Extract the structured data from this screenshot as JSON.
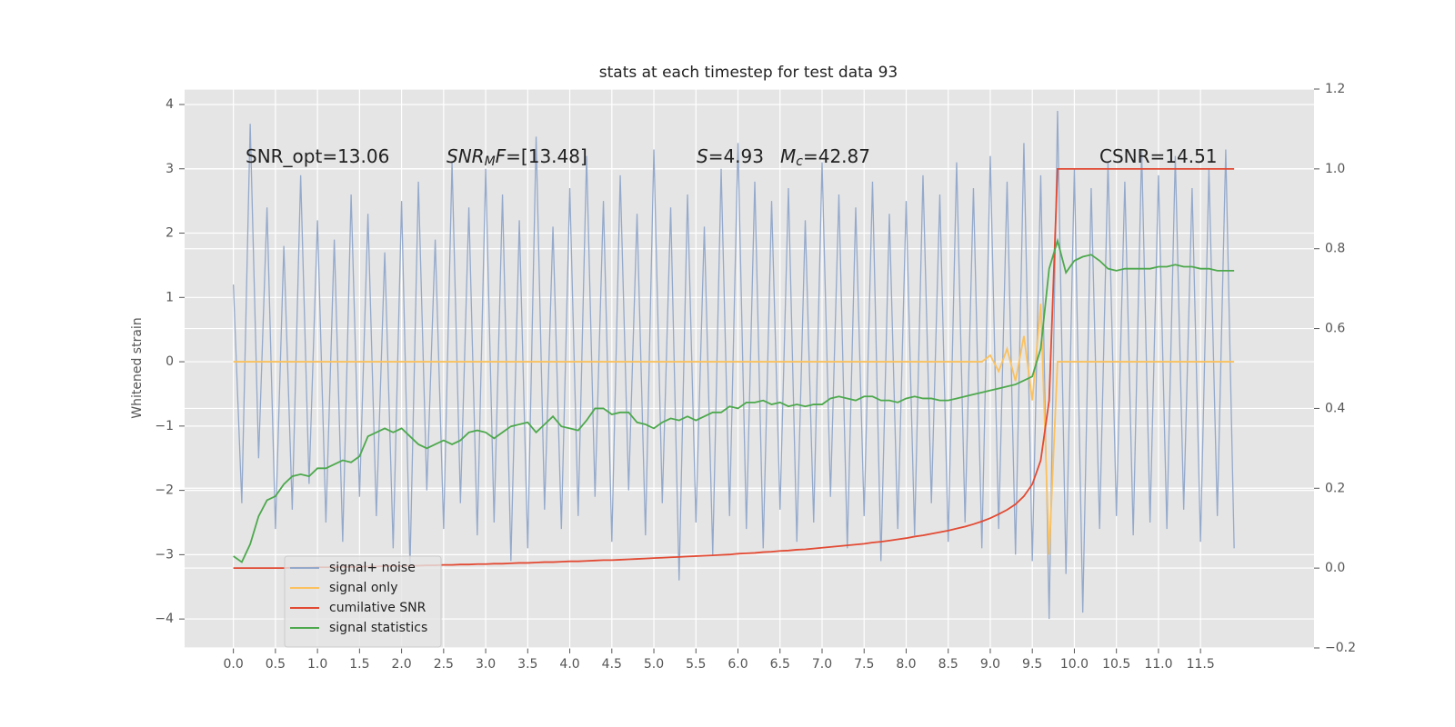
{
  "chart_data": {
    "type": "line",
    "title": "stats at each timestep for test data 93",
    "ylabel": "Whitened strain",
    "x": [
      0,
      0.1,
      0.2,
      0.3,
      0.4,
      0.5,
      0.6,
      0.7,
      0.8,
      0.9,
      1.0,
      1.1,
      1.2,
      1.3,
      1.4,
      1.5,
      1.6,
      1.7,
      1.8,
      1.9,
      2.0,
      2.1,
      2.2,
      2.3,
      2.4,
      2.5,
      2.6,
      2.7,
      2.8,
      2.9,
      3.0,
      3.1,
      3.2,
      3.3,
      3.4,
      3.5,
      3.6,
      3.7,
      3.8,
      3.9,
      4.0,
      4.1,
      4.2,
      4.3,
      4.4,
      4.5,
      4.6,
      4.7,
      4.8,
      4.9,
      5.0,
      5.1,
      5.2,
      5.3,
      5.4,
      5.5,
      5.6,
      5.7,
      5.8,
      5.9,
      6.0,
      6.1,
      6.2,
      6.3,
      6.4,
      6.5,
      6.6,
      6.7,
      6.8,
      6.9,
      7.0,
      7.1,
      7.2,
      7.3,
      7.4,
      7.5,
      7.6,
      7.7,
      7.8,
      7.9,
      8.0,
      8.1,
      8.2,
      8.3,
      8.4,
      8.5,
      8.6,
      8.7,
      8.8,
      8.9,
      9.0,
      9.1,
      9.2,
      9.3,
      9.4,
      9.5,
      9.6,
      9.7,
      9.8,
      9.9,
      10.0,
      10.1,
      10.2,
      10.3,
      10.4,
      10.5,
      10.6,
      10.7,
      10.8,
      10.9,
      11.0,
      11.1,
      11.2,
      11.3,
      11.4,
      11.5,
      11.6,
      11.7,
      11.8,
      11.9
    ],
    "series": [
      {
        "name": "signal+ noise",
        "color": "#94a9cb",
        "values": [
          1.2,
          -2.2,
          3.7,
          -1.5,
          2.4,
          -2.6,
          1.8,
          -2.3,
          2.9,
          -1.9,
          2.2,
          -2.5,
          1.9,
          -2.8,
          2.6,
          -2.1,
          2.3,
          -2.4,
          1.7,
          -2.9,
          2.5,
          -3.2,
          2.8,
          -2.0,
          1.9,
          -2.6,
          3.1,
          -2.2,
          2.4,
          -2.7,
          3.0,
          -2.5,
          2.6,
          -3.1,
          2.2,
          -2.9,
          3.5,
          -2.3,
          2.1,
          -2.6,
          2.7,
          -2.4,
          3.2,
          -2.1,
          2.5,
          -2.8,
          2.9,
          -2.0,
          2.3,
          -2.7,
          3.3,
          -2.2,
          2.4,
          -3.4,
          2.6,
          -2.5,
          2.1,
          -3.0,
          3.0,
          -2.4,
          3.4,
          -2.6,
          2.8,
          -2.9,
          2.5,
          -2.3,
          2.7,
          -2.8,
          2.2,
          -2.5,
          3.1,
          -2.1,
          2.6,
          -2.9,
          2.4,
          -2.4,
          2.8,
          -3.1,
          2.3,
          -2.6,
          2.5,
          -2.7,
          2.9,
          -2.2,
          2.6,
          -2.8,
          3.1,
          -2.5,
          2.7,
          -2.9,
          3.2,
          -2.6,
          2.8,
          -3.0,
          3.4,
          -3.1,
          2.9,
          -4.0,
          3.9,
          -3.3,
          3.0,
          -3.9,
          2.7,
          -2.6,
          3.1,
          -2.4,
          2.8,
          -2.7,
          3.3,
          -2.5,
          2.9,
          -2.6,
          3.2,
          -2.3,
          2.7,
          -2.8,
          3.0,
          -2.4,
          3.3,
          -2.9
        ]
      },
      {
        "name": "signal only",
        "color": "#fbc15e",
        "values": [
          0,
          0,
          0,
          0,
          0,
          0,
          0,
          0,
          0,
          0,
          0,
          0,
          0,
          0,
          0,
          0,
          0,
          0,
          0,
          0,
          0,
          0,
          0,
          0,
          0,
          0,
          0,
          0,
          0,
          0,
          0,
          0,
          0,
          0,
          0,
          0,
          0,
          0,
          0,
          0,
          0,
          0,
          0,
          0,
          0,
          0,
          0,
          0,
          0,
          0,
          0,
          0,
          0,
          0,
          0,
          0,
          0,
          0,
          0,
          0,
          0,
          0,
          0,
          0,
          0,
          0,
          0,
          0,
          0,
          0,
          0,
          0,
          0,
          0,
          0,
          0,
          0,
          0,
          0,
          0,
          0,
          0,
          0,
          0,
          0,
          0,
          0,
          0,
          0,
          0,
          0.1,
          -0.15,
          0.2,
          -0.3,
          0.4,
          -0.6,
          0.9,
          -3.0,
          0,
          0,
          0,
          0,
          0,
          0,
          0,
          0,
          0,
          0,
          0,
          0,
          0,
          0,
          0,
          0,
          0,
          0,
          0,
          0,
          0,
          0
        ]
      },
      {
        "name": "cumilative SNR",
        "color": "#e24a33",
        "axis": "y2",
        "values": [
          0,
          0,
          0,
          0,
          0,
          0,
          0,
          0.001,
          0.001,
          0.001,
          0.002,
          0.002,
          0.002,
          0.003,
          0.003,
          0.003,
          0.004,
          0.004,
          0.005,
          0.005,
          0.005,
          0.006,
          0.006,
          0.007,
          0.007,
          0.008,
          0.008,
          0.009,
          0.009,
          0.01,
          0.01,
          0.011,
          0.011,
          0.012,
          0.013,
          0.013,
          0.014,
          0.015,
          0.015,
          0.016,
          0.017,
          0.017,
          0.018,
          0.019,
          0.02,
          0.02,
          0.021,
          0.022,
          0.023,
          0.024,
          0.025,
          0.026,
          0.027,
          0.028,
          0.029,
          0.03,
          0.031,
          0.032,
          0.033,
          0.034,
          0.036,
          0.037,
          0.038,
          0.04,
          0.041,
          0.043,
          0.044,
          0.046,
          0.047,
          0.049,
          0.051,
          0.053,
          0.055,
          0.057,
          0.059,
          0.061,
          0.064,
          0.066,
          0.069,
          0.072,
          0.075,
          0.079,
          0.082,
          0.086,
          0.09,
          0.094,
          0.099,
          0.104,
          0.11,
          0.117,
          0.125,
          0.135,
          0.146,
          0.16,
          0.18,
          0.21,
          0.27,
          0.42,
          1.0,
          1.0,
          1.0,
          1.0,
          1.0,
          1.0,
          1.0,
          1.0,
          1.0,
          1.0,
          1.0,
          1.0,
          1.0,
          1.0,
          1.0,
          1.0,
          1.0,
          1.0,
          1.0,
          1.0,
          1.0,
          1.0
        ]
      },
      {
        "name": "signal statistics",
        "color": "#4da84d",
        "axis": "y2",
        "values": [
          0.03,
          0.015,
          0.06,
          0.13,
          0.17,
          0.18,
          0.21,
          0.23,
          0.235,
          0.23,
          0.25,
          0.25,
          0.26,
          0.27,
          0.265,
          0.28,
          0.33,
          0.34,
          0.35,
          0.34,
          0.35,
          0.33,
          0.31,
          0.3,
          0.31,
          0.32,
          0.31,
          0.32,
          0.34,
          0.345,
          0.34,
          0.325,
          0.34,
          0.355,
          0.36,
          0.365,
          0.34,
          0.36,
          0.38,
          0.355,
          0.35,
          0.345,
          0.37,
          0.4,
          0.4,
          0.385,
          0.39,
          0.39,
          0.365,
          0.36,
          0.35,
          0.365,
          0.375,
          0.37,
          0.38,
          0.37,
          0.38,
          0.39,
          0.39,
          0.405,
          0.4,
          0.415,
          0.415,
          0.42,
          0.41,
          0.415,
          0.405,
          0.41,
          0.405,
          0.41,
          0.41,
          0.425,
          0.43,
          0.425,
          0.42,
          0.43,
          0.43,
          0.42,
          0.42,
          0.415,
          0.425,
          0.43,
          0.425,
          0.425,
          0.42,
          0.42,
          0.425,
          0.43,
          0.435,
          0.44,
          0.445,
          0.45,
          0.455,
          0.46,
          0.47,
          0.48,
          0.55,
          0.75,
          0.82,
          0.74,
          0.77,
          0.78,
          0.785,
          0.77,
          0.75,
          0.745,
          0.75,
          0.75,
          0.75,
          0.75,
          0.755,
          0.755,
          0.76,
          0.755,
          0.755,
          0.75,
          0.75,
          0.745,
          0.745,
          0.745
        ]
      }
    ],
    "xlim": [
      -0.58,
      12.85
    ],
    "ylim": [
      -4.45,
      4.24
    ],
    "y2lim": [
      -0.2,
      1.2
    ],
    "xticks": [
      {
        "value": 0,
        "label": "0.0"
      },
      0.5,
      {
        "value": 1,
        "label": "1.0"
      },
      1.5,
      {
        "value": 2,
        "label": "2.0"
      },
      2.5,
      {
        "value": 3,
        "label": "3.0"
      },
      3.5,
      {
        "value": 4,
        "label": "4.0"
      },
      4.5,
      {
        "value": 5,
        "label": "5.0"
      },
      5.5,
      {
        "value": 6,
        "label": "6.0"
      },
      6.5,
      {
        "value": 7,
        "label": "7.0"
      },
      7.5,
      {
        "value": 8,
        "label": "8.0"
      },
      8.5,
      {
        "value": 9,
        "label": "9.0"
      },
      9.5,
      {
        "value": 10,
        "label": "10.0"
      },
      10.5,
      {
        "value": 11,
        "label": "11.0"
      },
      11.5
    ],
    "yticks": [
      {
        "value": -4,
        "label": "−4"
      },
      {
        "value": -3,
        "label": "−3"
      },
      {
        "value": -2,
        "label": "−2"
      },
      {
        "value": -1,
        "label": "−1"
      },
      0,
      1,
      2,
      3,
      4
    ],
    "y2ticks": [
      {
        "value": -0.2,
        "label": "−0.2"
      },
      {
        "value": 0,
        "label": "0.0"
      },
      0.2,
      0.4,
      0.6,
      0.8,
      {
        "value": 1,
        "label": "1.0"
      },
      1.2
    ],
    "grid": true,
    "legend": "lower left",
    "annotations": [
      {
        "parts": [
          {
            "text": "SNR_opt=13.06"
          }
        ]
      },
      {
        "parts": [
          {
            "text": "SNR",
            "style": "italic"
          },
          {
            "text": "M",
            "style": "sub"
          },
          {
            "text": "F",
            "style": "italic"
          },
          {
            "text": "=[13.48]"
          }
        ]
      },
      {
        "parts": [
          {
            "text": "S",
            "style": "italic"
          },
          {
            "text": "=4.93"
          }
        ]
      },
      {
        "parts": [
          {
            "text": "M",
            "style": "italic"
          },
          {
            "text": "c",
            "style": "sub"
          },
          {
            "text": "=42.87"
          }
        ]
      },
      {
        "parts": [
          {
            "text": "CSNR=14.51"
          }
        ]
      }
    ]
  }
}
